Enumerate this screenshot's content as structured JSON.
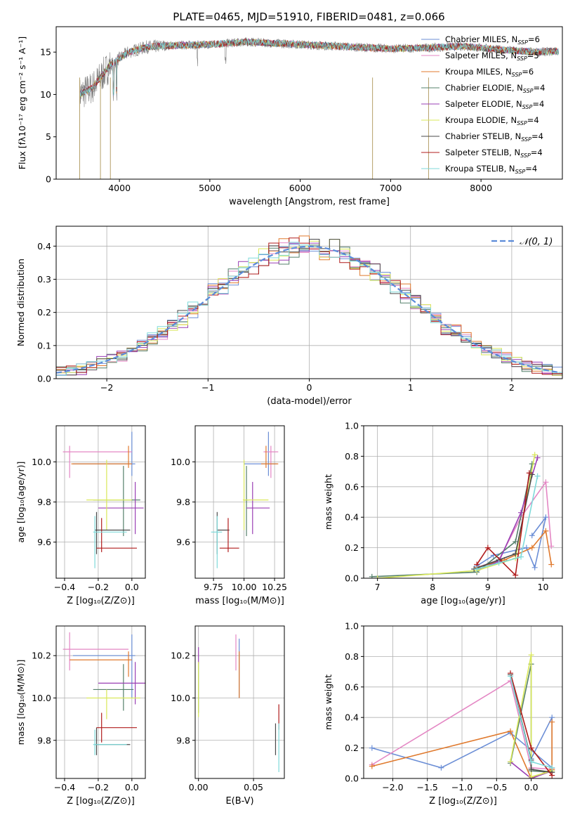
{
  "figure": {
    "title": "PLATE=0465, MJD=51910, FIBERID=0481, z=0.066"
  },
  "colors": {
    "chabrier_miles": "#6b8ed6",
    "salpeter_miles": "#e487c4",
    "kroupa_miles": "#e07a2e",
    "chabrier_elodie": "#55806b",
    "salpeter_elodie": "#9a3fb4",
    "kroupa_elodie": "#d9e85a",
    "chabrier_stelib": "#4a4a4a",
    "salpeter_stelib": "#b01c1c",
    "kroupa_stelib": "#7fdada",
    "gaussian": "#5b8bd9",
    "grid": "#b0b0b0",
    "spectrum_data": "#808080"
  },
  "legend_entries": [
    {
      "label": "Chabrier MILES, N",
      "sub": "SSP",
      "suffix": "=6",
      "color_key": "chabrier_miles"
    },
    {
      "label": "Salpeter MILES, N",
      "sub": "SSP",
      "suffix": "=5",
      "color_key": "salpeter_miles"
    },
    {
      "label": "Kroupa MILES, N",
      "sub": "SSP",
      "suffix": "=6",
      "color_key": "kroupa_miles"
    },
    {
      "label": "Chabrier ELODIE, N",
      "sub": "SSP",
      "suffix": "=4",
      "color_key": "chabrier_elodie"
    },
    {
      "label": "Salpeter ELODIE, N",
      "sub": "SSP",
      "suffix": "=4",
      "color_key": "salpeter_elodie"
    },
    {
      "label": "Kroupa ELODIE, N",
      "sub": "SSP",
      "suffix": "=4",
      "color_key": "kroupa_elodie"
    },
    {
      "label": "Chabrier STELIB, N",
      "sub": "SSP",
      "suffix": "=4",
      "color_key": "chabrier_stelib"
    },
    {
      "label": "Salpeter STELIB, N",
      "sub": "SSP",
      "suffix": "=4",
      "color_key": "salpeter_stelib"
    },
    {
      "label": "Kroupa STELIB, N",
      "sub": "SSP",
      "suffix": "=4",
      "color_key": "kroupa_stelib"
    }
  ],
  "chart_data": [
    {
      "id": "spectrum",
      "type": "line",
      "title": "PLATE=0465, MJD=51910, FIBERID=0481, z=0.066",
      "xlabel": "wavelength [Angstrom, rest frame]",
      "ylabel": "Flux [fλ10⁻¹⁷ erg cm⁻² s⁻¹ A⁻¹]",
      "xlim": [
        3300,
        8900
      ],
      "ylim": [
        0,
        18
      ],
      "xticks": [
        4000,
        5000,
        6000,
        7000,
        8000
      ],
      "yticks": [
        0,
        5,
        10,
        15
      ],
      "grid": false,
      "legend": "right",
      "continuum_x": [
        3560,
        3700,
        3900,
        4100,
        4300,
        4600,
        5000,
        5400,
        5800,
        6200,
        6600,
        7000,
        7400,
        7800,
        8200,
        8600,
        8860
      ],
      "continuum_y": [
        10.0,
        10.8,
        13.5,
        15.0,
        15.6,
        15.8,
        15.9,
        16.2,
        16.0,
        15.8,
        15.6,
        15.4,
        15.5,
        15.7,
        15.3,
        15.0,
        15.1
      ]
    },
    {
      "id": "residuals",
      "type": "histogram",
      "xlabel": "(data-model)/error",
      "ylabel": "Normed distribution",
      "xlim": [
        -2.5,
        2.5
      ],
      "ylim": [
        0,
        0.46
      ],
      "xticks": [
        -2,
        -1,
        0,
        1,
        2
      ],
      "yticks": [
        0.0,
        0.1,
        0.2,
        0.3,
        0.4
      ],
      "grid": true,
      "legend": "top-right",
      "gaussian_label": "𝒩(0, 1)",
      "bin_width": 0.1
    },
    {
      "id": "age_vs_z",
      "type": "errorbar",
      "xlabel": "Z [log₁₀(Z/Z⊙)]",
      "ylabel": "age  [log₁₀(age/yr)]",
      "xlim": [
        -0.45,
        0.08
      ],
      "ylim": [
        9.42,
        10.18
      ],
      "xticks": [
        -0.4,
        -0.2,
        0.0
      ],
      "xtick_labels": [
        "−0.4",
        "−0.2",
        "0.0"
      ],
      "yticks": [
        9.6,
        9.8,
        10.0
      ],
      "grid": true,
      "points": [
        {
          "c": "chabrier_miles",
          "x": 0.0,
          "xe": [
            0.35,
            0.02
          ],
          "y": 9.99,
          "ye": [
            0.06,
            0.16
          ]
        },
        {
          "c": "salpeter_miles",
          "x": -0.37,
          "xe": [
            0.04,
            0.37
          ],
          "y": 10.05,
          "ye": [
            0.13,
            0.03
          ]
        },
        {
          "c": "kroupa_miles",
          "x": -0.02,
          "xe": [
            0.34,
            0.02
          ],
          "y": 9.99,
          "ye": [
            0.02,
            0.09
          ]
        },
        {
          "c": "chabrier_elodie",
          "x": -0.05,
          "xe": [
            0.18,
            0.1
          ],
          "y": 9.81,
          "ye": [
            0.18,
            0.17
          ]
        },
        {
          "c": "salpeter_elodie",
          "x": 0.02,
          "xe": [
            0.22,
            0.05
          ],
          "y": 9.77,
          "ye": [
            0.13,
            0.13
          ]
        },
        {
          "c": "kroupa_elodie",
          "x": -0.15,
          "xe": [
            0.12,
            0.15
          ],
          "y": 9.81,
          "ye": [
            0.15,
            0.2
          ]
        },
        {
          "c": "chabrier_stelib",
          "x": -0.21,
          "xe": [
            0.01,
            0.2
          ],
          "y": 9.66,
          "ye": [
            0.12,
            0.09
          ]
        },
        {
          "c": "salpeter_stelib",
          "x": -0.18,
          "xe": [
            0.03,
            0.21
          ],
          "y": 9.57,
          "ye": [
            0.02,
            0.15
          ]
        },
        {
          "c": "kroupa_stelib",
          "x": -0.22,
          "xe": [
            0.01,
            0.19
          ],
          "y": 9.65,
          "ye": [
            0.18,
            0.08
          ]
        }
      ]
    },
    {
      "id": "age_vs_mass",
      "type": "errorbar",
      "xlabel": "mass [log₁₀(M/M⊙)]",
      "ylabel": "",
      "xlim": [
        9.6,
        10.33
      ],
      "ylim": [
        9.42,
        10.18
      ],
      "xticks": [
        9.75,
        10.0,
        10.25
      ],
      "xtick_labels": [
        "9.75",
        "10.00",
        "10.25"
      ],
      "yticks": [
        9.6,
        9.8,
        10.0
      ],
      "grid": true,
      "points": [
        {
          "c": "chabrier_miles",
          "x": 10.2,
          "xe": [
            0.2,
            0.07
          ],
          "y": 9.99,
          "ye": [
            0.06,
            0.16
          ]
        },
        {
          "c": "salpeter_miles",
          "x": 10.22,
          "xe": [
            0.06,
            0.06
          ],
          "y": 10.05,
          "ye": [
            0.13,
            0.03
          ]
        },
        {
          "c": "kroupa_miles",
          "x": 10.18,
          "xe": [
            0.04,
            0.1
          ],
          "y": 9.99,
          "ye": [
            0.02,
            0.09
          ]
        },
        {
          "c": "chabrier_elodie",
          "x": 10.02,
          "xe": [
            0.02,
            0.02
          ],
          "y": 9.81,
          "ye": [
            0.18,
            0.17
          ]
        },
        {
          "c": "salpeter_elodie",
          "x": 10.07,
          "xe": [
            0.05,
            0.14
          ],
          "y": 9.77,
          "ye": [
            0.13,
            0.13
          ]
        },
        {
          "c": "kroupa_elodie",
          "x": 10.0,
          "xe": [
            0.01,
            0.2
          ],
          "y": 9.81,
          "ye": [
            0.15,
            0.2
          ]
        },
        {
          "c": "chabrier_stelib",
          "x": 9.78,
          "xe": [
            0.0,
            0.1
          ],
          "y": 9.66,
          "ye": [
            0.12,
            0.09
          ]
        },
        {
          "c": "salpeter_stelib",
          "x": 9.87,
          "xe": [
            0.07,
            0.09
          ],
          "y": 9.57,
          "ye": [
            0.02,
            0.15
          ]
        },
        {
          "c": "kroupa_stelib",
          "x": 9.78,
          "xe": [
            0.05,
            0.04
          ],
          "y": 9.65,
          "ye": [
            0.18,
            0.08
          ]
        }
      ]
    },
    {
      "id": "massweight_vs_age",
      "type": "line",
      "xlabel": "age  [log₁₀(age/yr)]",
      "ylabel": "mass weight",
      "xlim": [
        6.75,
        10.35
      ],
      "ylim": [
        0,
        1.0
      ],
      "xticks": [
        7,
        8,
        9,
        10
      ],
      "yticks": [
        0.0,
        0.2,
        0.4,
        0.6,
        0.8,
        1.0
      ],
      "grid": true,
      "series": [
        {
          "c": "chabrier_miles",
          "x": [
            8.8,
            9.1,
            9.7,
            9.85,
            10.05,
            9.8
          ],
          "y": [
            0.08,
            0.15,
            0.2,
            0.07,
            0.4,
            0.28
          ]
        },
        {
          "c": "salpeter_miles",
          "x": [
            8.8,
            9.2,
            9.6,
            10.05,
            10.15
          ],
          "y": [
            0.07,
            0.12,
            0.4,
            0.63,
            0.21
          ]
        },
        {
          "c": "kroupa_miles",
          "x": [
            8.8,
            9.3,
            9.8,
            10.05,
            10.15
          ],
          "y": [
            0.07,
            0.12,
            0.2,
            0.31,
            0.09
          ]
        },
        {
          "c": "chabrier_elodie",
          "x": [
            6.9,
            8.8,
            9.5,
            9.8
          ],
          "y": [
            0.01,
            0.04,
            0.24,
            0.75
          ]
        },
        {
          "c": "salpeter_elodie",
          "x": [
            8.8,
            9.2,
            9.6,
            9.9
          ],
          "y": [
            0.05,
            0.11,
            0.43,
            0.79
          ]
        },
        {
          "c": "kroupa_elodie",
          "x": [
            7.0,
            8.8,
            9.5,
            9.85
          ],
          "y": [
            0.0,
            0.05,
            0.13,
            0.81
          ]
        },
        {
          "c": "chabrier_stelib",
          "x": [
            8.75,
            9.2,
            9.5,
            9.8
          ],
          "y": [
            0.06,
            0.12,
            0.16,
            0.68
          ]
        },
        {
          "c": "salpeter_stelib",
          "x": [
            8.8,
            9.0,
            9.5,
            9.75
          ],
          "y": [
            0.09,
            0.2,
            0.02,
            0.69
          ]
        },
        {
          "c": "kroupa_stelib",
          "x": [
            8.8,
            9.2,
            9.6,
            9.9
          ],
          "y": [
            0.06,
            0.1,
            0.14,
            0.67
          ]
        }
      ]
    },
    {
      "id": "mass_vs_z",
      "type": "errorbar",
      "xlabel": "Z [log₁₀(Z/Z⊙)]",
      "ylabel": "mass [log₁₀(M/M⊙)]",
      "xlim": [
        -0.45,
        0.08
      ],
      "ylim": [
        9.62,
        10.34
      ],
      "xticks": [
        -0.4,
        -0.2,
        0.0
      ],
      "xtick_labels": [
        "−0.4",
        "−0.2",
        "0.0"
      ],
      "yticks": [
        9.8,
        10.0,
        10.2
      ],
      "grid": true,
      "points": [
        {
          "c": "chabrier_miles",
          "x": 0.0,
          "xe": [
            0.35,
            0.02
          ],
          "y": 10.2,
          "ye": [
            0.2,
            0.1
          ]
        },
        {
          "c": "salpeter_miles",
          "x": -0.37,
          "xe": [
            0.04,
            0.35
          ],
          "y": 10.23,
          "ye": [
            0.1,
            0.08
          ]
        },
        {
          "c": "kroupa_miles",
          "x": -0.02,
          "xe": [
            0.35,
            0.02
          ],
          "y": 10.18,
          "ye": [
            0.08,
            0.04
          ]
        },
        {
          "c": "chabrier_elodie",
          "x": -0.05,
          "xe": [
            0.18,
            0.06
          ],
          "y": 10.04,
          "ye": [
            0.1,
            0.12
          ]
        },
        {
          "c": "salpeter_elodie",
          "x": 0.02,
          "xe": [
            0.22,
            0.06
          ],
          "y": 10.07,
          "ye": [
            0.1,
            0.1
          ]
        },
        {
          "c": "kroupa_elodie",
          "x": -0.15,
          "xe": [
            0.12,
            0.2
          ],
          "y": 10.0,
          "ye": [
            0.1,
            0.04
          ]
        },
        {
          "c": "chabrier_stelib",
          "x": -0.21,
          "xe": [
            0.01,
            0.2
          ],
          "y": 9.78,
          "ye": [
            0.05,
            0.08
          ]
        },
        {
          "c": "salpeter_stelib",
          "x": -0.18,
          "xe": [
            0.03,
            0.21
          ],
          "y": 9.86,
          "ye": [
            0.07,
            0.07
          ]
        },
        {
          "c": "kroupa_stelib",
          "x": -0.22,
          "xe": [
            0.01,
            0.19
          ],
          "y": 9.78,
          "ye": [
            0.05,
            0.07
          ]
        }
      ]
    },
    {
      "id": "mass_vs_ebv",
      "type": "errorbar",
      "xlabel": "E(B-V)",
      "ylabel": "",
      "xlim": [
        -0.003,
        0.078
      ],
      "ylim": [
        9.62,
        10.34
      ],
      "xticks": [
        0.0,
        0.05
      ],
      "xtick_labels": [
        "0.00",
        "0.05"
      ],
      "yticks": [
        9.8,
        10.0,
        10.2
      ],
      "grid": true,
      "points": [
        {
          "c": "chabrier_miles",
          "x": 0.037,
          "xe": [
            0.0,
            0.0
          ],
          "y": 10.2,
          "ye": [
            0.2,
            0.08
          ]
        },
        {
          "c": "salpeter_miles",
          "x": 0.034,
          "xe": [
            0.0,
            0.0
          ],
          "y": 10.23,
          "ye": [
            0.1,
            0.07
          ]
        },
        {
          "c": "kroupa_miles",
          "x": 0.037,
          "xe": [
            0.0,
            0.0
          ],
          "y": 10.18,
          "ye": [
            0.18,
            0.04
          ]
        },
        {
          "c": "chabrier_elodie",
          "x": 0.0,
          "xe": [
            0.0,
            0.0
          ],
          "y": 10.05,
          "ye": [
            0.12,
            0.12
          ]
        },
        {
          "c": "salpeter_elodie",
          "x": 0.0,
          "xe": [
            0.0,
            0.0
          ],
          "y": 10.2,
          "ye": [
            0.04,
            0.04
          ]
        },
        {
          "c": "kroupa_elodie",
          "x": 0.0,
          "xe": [
            0.0,
            0.0
          ],
          "y": 10.05,
          "ye": [
            0.14,
            0.12
          ]
        },
        {
          "c": "chabrier_stelib",
          "x": 0.07,
          "xe": [
            0.0,
            0.0
          ],
          "y": 9.83,
          "ye": [
            0.1,
            0.05
          ]
        },
        {
          "c": "salpeter_stelib",
          "x": 0.073,
          "xe": [
            0.0,
            0.0
          ],
          "y": 9.92,
          "ye": [
            0.07,
            0.05
          ]
        },
        {
          "c": "kroupa_stelib",
          "x": 0.073,
          "xe": [
            0.0,
            0.0
          ],
          "y": 9.8,
          "ye": [
            0.15,
            0.08
          ]
        }
      ]
    },
    {
      "id": "massweight_vs_z",
      "type": "line",
      "xlabel": "Z [log₁₀(Z/Z⊙)]",
      "ylabel": "mass weight",
      "xlim": [
        -2.42,
        0.45
      ],
      "ylim": [
        0,
        1.0
      ],
      "xticks": [
        -2.0,
        -1.5,
        -1.0,
        -0.5,
        0.0
      ],
      "xtick_labels": [
        "−2.0",
        "−1.5",
        "−1.0",
        "−0.5",
        "0.0"
      ],
      "yticks": [
        0.0,
        0.2,
        0.4,
        0.6,
        0.8,
        1.0
      ],
      "grid": true,
      "series": [
        {
          "c": "chabrier_miles",
          "x": [
            -2.3,
            -1.3,
            -0.3,
            0.3,
            0.3,
            0.0
          ],
          "y": [
            0.2,
            0.07,
            0.3,
            0.07,
            0.4,
            0.13
          ]
        },
        {
          "c": "salpeter_miles",
          "x": [
            -2.3,
            -0.3,
            0.0,
            0.3
          ],
          "y": [
            0.09,
            0.64,
            0.07,
            0.06
          ]
        },
        {
          "c": "kroupa_miles",
          "x": [
            -2.3,
            -0.3,
            0.0,
            0.3,
            0.3
          ],
          "y": [
            0.08,
            0.31,
            0.0,
            0.06,
            0.37
          ]
        },
        {
          "c": "chabrier_elodie",
          "x": [
            -0.3,
            0.0,
            0.0,
            0.3
          ],
          "y": [
            0.1,
            0.75,
            0.05,
            0.04
          ]
        },
        {
          "c": "salpeter_elodie",
          "x": [
            -0.3,
            0.0,
            0.3
          ],
          "y": [
            0.11,
            0.0,
            0.05
          ]
        },
        {
          "c": "kroupa_elodie",
          "x": [
            -0.3,
            0.0,
            0.0,
            0.3
          ],
          "y": [
            0.11,
            0.81,
            0.01,
            0.05
          ]
        },
        {
          "c": "chabrier_stelib",
          "x": [
            -0.3,
            0.0,
            0.0,
            0.3
          ],
          "y": [
            0.68,
            0.12,
            0.06,
            0.04
          ]
        },
        {
          "c": "salpeter_stelib",
          "x": [
            -0.3,
            0.0,
            0.3
          ],
          "y": [
            0.69,
            0.2,
            0.02
          ]
        },
        {
          "c": "kroupa_stelib",
          "x": [
            -0.3,
            0.0,
            0.3
          ],
          "y": [
            0.67,
            0.11,
            0.07
          ]
        }
      ]
    }
  ]
}
